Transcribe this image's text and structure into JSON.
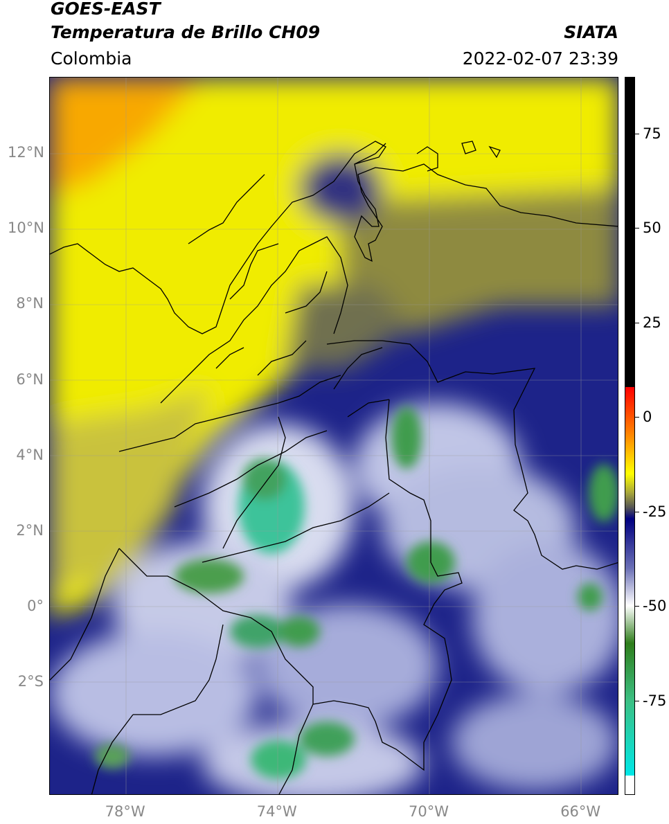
{
  "header": {
    "title_line1": "GOES-EAST",
    "title_line2": "Temperatura de Brillo CH09",
    "region": "Colombia",
    "brand": "SIATA",
    "datetime": "2022-02-07 23:39"
  },
  "map": {
    "lat_ticks": [
      {
        "label": "12°N",
        "value": 12
      },
      {
        "label": "10°N",
        "value": 10
      },
      {
        "label": "8°N",
        "value": 8
      },
      {
        "label": "6°N",
        "value": 6
      },
      {
        "label": "4°N",
        "value": 4
      },
      {
        "label": "2°N",
        "value": 2
      },
      {
        "label": "0°",
        "value": 0
      },
      {
        "label": "2°S",
        "value": -2
      }
    ],
    "lon_ticks": [
      {
        "label": "78°W",
        "value": -78
      },
      {
        "label": "74°W",
        "value": -74
      },
      {
        "label": "70°W",
        "value": -70
      },
      {
        "label": "66°W",
        "value": -66
      }
    ],
    "extent": {
      "lon_min": -80,
      "lon_max": -65,
      "lat_min": -5,
      "lat_max": 14
    }
  },
  "colorbar": {
    "ticks": [
      {
        "label": "75",
        "value": 75
      },
      {
        "label": "50",
        "value": 50
      },
      {
        "label": "25",
        "value": 25
      },
      {
        "label": "0",
        "value": 0
      },
      {
        "label": "-25",
        "value": -25
      },
      {
        "label": "-50",
        "value": -50
      },
      {
        "label": "-75",
        "value": -75
      }
    ],
    "range": [
      -100,
      90
    ],
    "stops": [
      {
        "value": 90,
        "color": "#000000"
      },
      {
        "value": 8,
        "color": "#000000"
      },
      {
        "value": 7.9,
        "color": "#ff0000"
      },
      {
        "value": -5,
        "color": "#ff8a00"
      },
      {
        "value": -15,
        "color": "#ffff00"
      },
      {
        "value": -20,
        "color": "#a9a83a"
      },
      {
        "value": -24,
        "color": "#555555"
      },
      {
        "value": -27,
        "color": "#000080"
      },
      {
        "value": -40,
        "color": "#6a6fb5"
      },
      {
        "value": -50,
        "color": "#ffffff"
      },
      {
        "value": -60,
        "color": "#2e7d1b"
      },
      {
        "value": -75,
        "color": "#3cbf82"
      },
      {
        "value": -95,
        "color": "#00e7e7"
      },
      {
        "value": -95.1,
        "color": "#ffffff"
      },
      {
        "value": -100,
        "color": "#ffffff"
      }
    ]
  }
}
